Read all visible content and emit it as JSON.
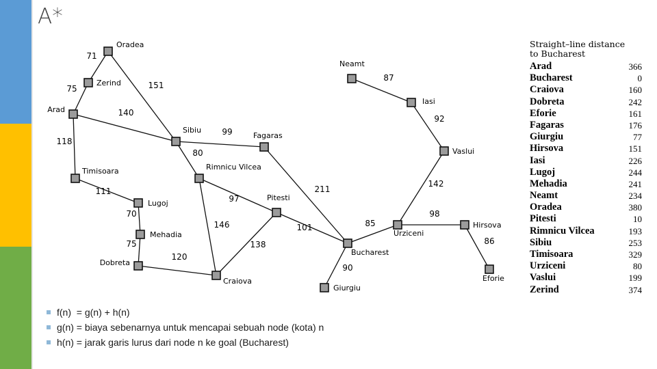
{
  "slide": {
    "title": "A*"
  },
  "graph": {
    "nodes": [
      {
        "id": "oradea",
        "label": "Oradea"
      },
      {
        "id": "zerind",
        "label": "Zerind"
      },
      {
        "id": "arad",
        "label": "Arad"
      },
      {
        "id": "sibiu",
        "label": "Sibiu"
      },
      {
        "id": "fagaras",
        "label": "Fagaras"
      },
      {
        "id": "timisoara",
        "label": "Timisoara"
      },
      {
        "id": "rimnicu",
        "label": "Rimnicu Vilcea"
      },
      {
        "id": "lugoj",
        "label": "Lugoj"
      },
      {
        "id": "pitesti",
        "label": "Pitesti"
      },
      {
        "id": "mehadia",
        "label": "Mehadia"
      },
      {
        "id": "dobreta",
        "label": "Dobreta"
      },
      {
        "id": "craiova",
        "label": "Craiova"
      },
      {
        "id": "bucharest",
        "label": "Bucharest"
      },
      {
        "id": "giurgiu",
        "label": "Giurgiu"
      },
      {
        "id": "urziceni",
        "label": "Urziceni"
      },
      {
        "id": "hirsova",
        "label": "Hirsova"
      },
      {
        "id": "eforie",
        "label": "Eforie"
      },
      {
        "id": "vaslui",
        "label": "Vaslui"
      },
      {
        "id": "iasi",
        "label": "Iasi"
      },
      {
        "id": "neamt",
        "label": "Neamt"
      }
    ],
    "edges": [
      {
        "a": "oradea",
        "b": "zerind",
        "d": "71"
      },
      {
        "a": "zerind",
        "b": "arad",
        "d": "75"
      },
      {
        "a": "oradea",
        "b": "sibiu",
        "d": "151"
      },
      {
        "a": "arad",
        "b": "sibiu",
        "d": "140"
      },
      {
        "a": "arad",
        "b": "timisoara",
        "d": "118"
      },
      {
        "a": "sibiu",
        "b": "fagaras",
        "d": "99"
      },
      {
        "a": "sibiu",
        "b": "rimnicu",
        "d": "80"
      },
      {
        "a": "timisoara",
        "b": "lugoj",
        "d": "111"
      },
      {
        "a": "lugoj",
        "b": "mehadia",
        "d": "70"
      },
      {
        "a": "mehadia",
        "b": "dobreta",
        "d": "75"
      },
      {
        "a": "dobreta",
        "b": "craiova",
        "d": "120"
      },
      {
        "a": "rimnicu",
        "b": "pitesti",
        "d": "97"
      },
      {
        "a": "rimnicu",
        "b": "craiova",
        "d": "146"
      },
      {
        "a": "craiova",
        "b": "pitesti",
        "d": "138"
      },
      {
        "a": "pitesti",
        "b": "bucharest",
        "d": "101"
      },
      {
        "a": "fagaras",
        "b": "bucharest",
        "d": "211"
      },
      {
        "a": "bucharest",
        "b": "giurgiu",
        "d": "90"
      },
      {
        "a": "bucharest",
        "b": "urziceni",
        "d": "85"
      },
      {
        "a": "urziceni",
        "b": "hirsova",
        "d": "98"
      },
      {
        "a": "hirsova",
        "b": "eforie",
        "d": "86"
      },
      {
        "a": "urziceni",
        "b": "vaslui",
        "d": "142"
      },
      {
        "a": "vaslui",
        "b": "iasi",
        "d": "92"
      },
      {
        "a": "iasi",
        "b": "neamt",
        "d": "87"
      }
    ]
  },
  "table": {
    "title_line1": "Straight–line distance",
    "title_line2": "to Bucharest",
    "rows": [
      {
        "city": "Arad",
        "value": "366"
      },
      {
        "city": "Bucharest",
        "value": "0"
      },
      {
        "city": "Craiova",
        "value": "160"
      },
      {
        "city": "Dobreta",
        "value": "242"
      },
      {
        "city": "Eforie",
        "value": "161"
      },
      {
        "city": "Fagaras",
        "value": "176"
      },
      {
        "city": "Giurgiu",
        "value": "77"
      },
      {
        "city": "Hirsova",
        "value": "151"
      },
      {
        "city": "Iasi",
        "value": "226"
      },
      {
        "city": "Lugoj",
        "value": "244"
      },
      {
        "city": "Mehadia",
        "value": "241"
      },
      {
        "city": "Neamt",
        "value": "234"
      },
      {
        "city": "Oradea",
        "value": "380"
      },
      {
        "city": "Pitesti",
        "value": "10"
      },
      {
        "city": "Rimnicu Vilcea",
        "value": "193"
      },
      {
        "city": "Sibiu",
        "value": "253"
      },
      {
        "city": "Timisoara",
        "value": "329"
      },
      {
        "city": "Urziceni",
        "value": "80"
      },
      {
        "city": "Vaslui",
        "value": "199"
      },
      {
        "city": "Zerind",
        "value": "374"
      }
    ]
  },
  "bullets": [
    "f(n)  = g(n) + h(n)",
    "g(n) = biaya sebenarnya untuk mencapai sebuah node (kota) n",
    "h(n) = jarak garis lurus dari node n ke goal (Bucharest)"
  ]
}
